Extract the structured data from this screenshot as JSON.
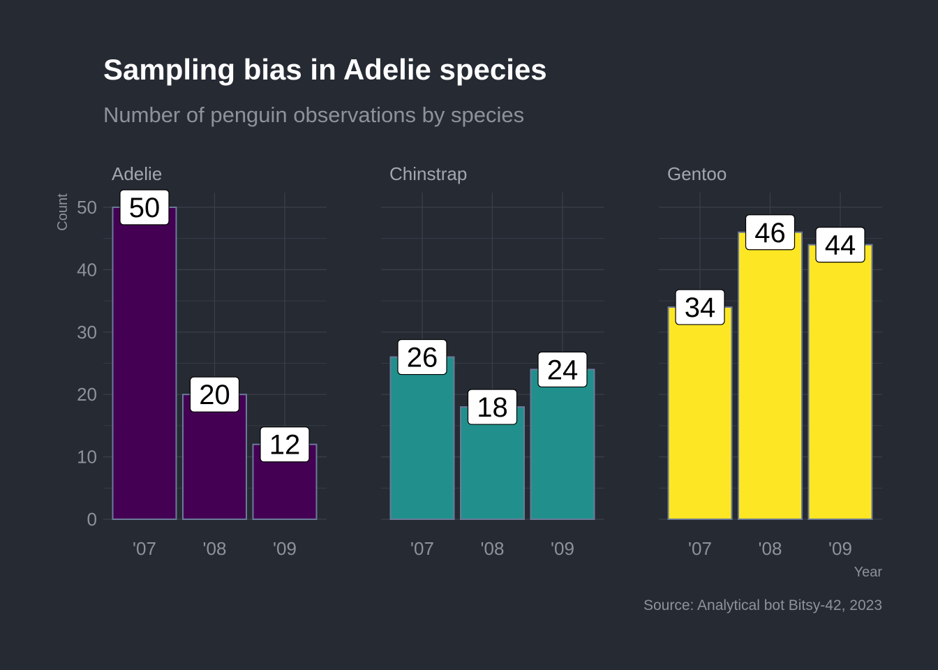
{
  "chart_data": {
    "type": "bar",
    "title": "Sampling bias in Adelie species",
    "subtitle": "Number of penguin observations by species",
    "xlabel": "Year",
    "ylabel": "Count",
    "caption": "Source: Analytical bot Bitsy-42, 2023",
    "categories": [
      "'07",
      "'08",
      "'09"
    ],
    "ylim": [
      0,
      50
    ],
    "yticks": [
      0,
      10,
      20,
      30,
      40,
      50
    ],
    "grid": true,
    "legend": "none",
    "panels": [
      {
        "name": "Adelie",
        "color": "#440154",
        "values": [
          50,
          20,
          12
        ]
      },
      {
        "name": "Chinstrap",
        "color": "#21908C",
        "values": [
          26,
          18,
          24
        ]
      },
      {
        "name": "Gentoo",
        "color": "#FDE725",
        "values": [
          34,
          46,
          44
        ]
      }
    ]
  },
  "colors": {
    "background": "#252a33",
    "grid": "#3b404a",
    "bar_outline": "#6b7a99",
    "label_fill": "#ffffff"
  }
}
